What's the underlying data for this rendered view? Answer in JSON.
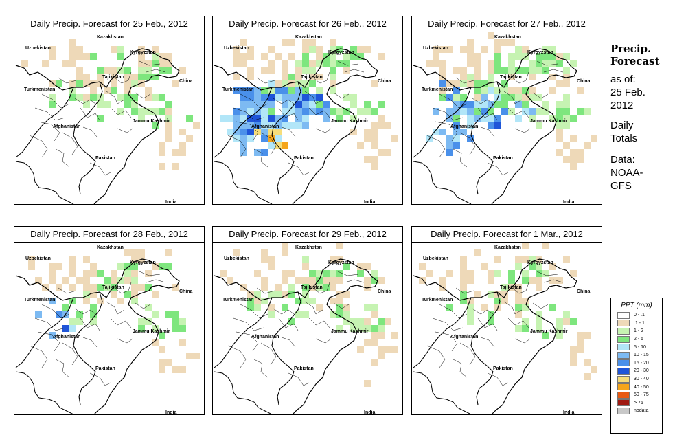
{
  "panels": [
    {
      "title": "Daily Precip. Forecast for  25 Feb., 2012"
    },
    {
      "title": "Daily Precip. Forecast for  26 Feb., 2012"
    },
    {
      "title": "Daily Precip. Forecast for  27 Feb., 2012"
    },
    {
      "title": "Daily Precip. Forecast for  28 Feb., 2012"
    },
    {
      "title": "Daily Precip. Forecast for  29 Feb., 2012"
    },
    {
      "title": "Daily Precip. Forecast for  1 Mar., 2012"
    }
  ],
  "countries": {
    "kazakhstan": "Kazakhstan",
    "uzbekistan": "Uzbekistan",
    "kyrgyzstan": "Kyrgyzstan",
    "tajikistan": "Tajikistan",
    "china": "China",
    "turkmenistan": "Turkmenistan",
    "jammu_kashmir": "Jammu Kashmir",
    "afghanistan": "Afghanistan",
    "pakistan": "Pakistan",
    "india": "India"
  },
  "sidebar": {
    "title_line1": "Precip.",
    "title_line2": "Forecast",
    "asof_line1": "as of:",
    "asof_line2": "25 Feb.",
    "asof_line3": "2012",
    "totals_line1": "Daily",
    "totals_line2": "Totals",
    "source_line1": "Data:",
    "source_line2": "NOAA-",
    "source_line3": "GFS"
  },
  "legend": {
    "title": "PPT (mm)",
    "items": [
      {
        "label": "0 - .1",
        "color": "#ffffff"
      },
      {
        "label": ".1 - 1",
        "color": "#eed9b8"
      },
      {
        "label": "1 - 2",
        "color": "#c6f3b2"
      },
      {
        "label": "2 - 5",
        "color": "#7ee67e"
      },
      {
        "label": "5 - 10",
        "color": "#b2e6f8"
      },
      {
        "label": "10 - 15",
        "color": "#7dbaf2"
      },
      {
        "label": "15 - 20",
        "color": "#4a90ea"
      },
      {
        "label": "20 - 30",
        "color": "#1f55d8"
      },
      {
        "label": "30 - 40",
        "color": "#f6dd7a"
      },
      {
        "label": "40 - 50",
        "color": "#f5a51b"
      },
      {
        "label": "50 - 75",
        "color": "#e85a14"
      },
      {
        "label": "> 75",
        "color": "#a01a12"
      },
      {
        "label": "nodata",
        "color": "#c8c8c8"
      }
    ]
  },
  "precip_intensity": [
    {
      "dust": 0.35,
      "green": 0.45,
      "blue": 0.0,
      "orange": 0.0
    },
    {
      "dust": 0.45,
      "green": 0.8,
      "blue": 1.0,
      "orange": 1.0
    },
    {
      "dust": 0.55,
      "green": 0.9,
      "blue": 0.6,
      "orange": 0.0
    },
    {
      "dust": 0.35,
      "green": 0.45,
      "blue": 0.05,
      "orange": 0.0
    },
    {
      "dust": 0.4,
      "green": 0.55,
      "blue": 0.0,
      "orange": 0.0
    },
    {
      "dust": 0.45,
      "green": 0.35,
      "blue": 0.0,
      "orange": 0.0
    }
  ]
}
